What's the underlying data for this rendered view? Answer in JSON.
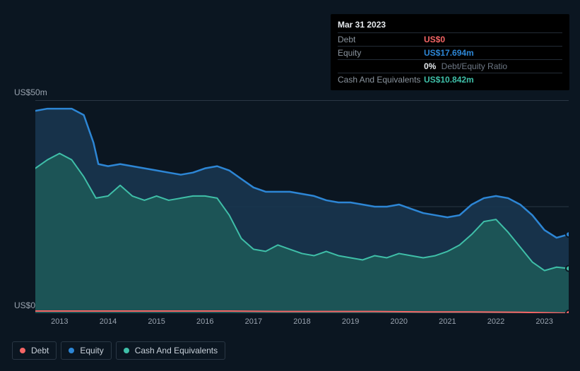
{
  "tooltip": {
    "date": "Mar 31 2023",
    "rows": [
      {
        "label": "Debt",
        "value": "US$0",
        "cls": "c-debt"
      },
      {
        "label": "Equity",
        "value": "US$17.694m",
        "cls": "c-equity"
      },
      {
        "label": "",
        "ratio_pct": "0%",
        "ratio_lbl": "Debt/Equity Ratio"
      },
      {
        "label": "Cash And Equivalents",
        "value": "US$10.842m",
        "cls": "c-cash"
      }
    ]
  },
  "chart": {
    "type": "area",
    "background_color": "#0b1621",
    "grid_color": "#2a3744",
    "y_axis": {
      "min": 0,
      "max": 50,
      "top_label": "US$50m",
      "bottom_label": "US$0"
    },
    "x_axis": {
      "min": 2012.5,
      "max": 2023.5,
      "ticks": [
        2013,
        2014,
        2015,
        2016,
        2017,
        2018,
        2019,
        2020,
        2021,
        2022,
        2023
      ],
      "tick_labels": [
        "2013",
        "2014",
        "2015",
        "2016",
        "2017",
        "2018",
        "2019",
        "2020",
        "2021",
        "2022",
        "2023"
      ]
    },
    "series": [
      {
        "name": "Equity",
        "color": "#2d86d5",
        "fill": "#18354f",
        "fill_opacity": 0.9,
        "line_width": 2.5,
        "end_marker": true,
        "points": [
          [
            2012.5,
            47.5
          ],
          [
            2012.75,
            48
          ],
          [
            2013.0,
            48
          ],
          [
            2013.25,
            48
          ],
          [
            2013.5,
            46.5
          ],
          [
            2013.7,
            40
          ],
          [
            2013.8,
            35
          ],
          [
            2014.0,
            34.5
          ],
          [
            2014.25,
            35
          ],
          [
            2014.5,
            34.5
          ],
          [
            2014.75,
            34
          ],
          [
            2015.0,
            33.5
          ],
          [
            2015.25,
            33
          ],
          [
            2015.5,
            32.5
          ],
          [
            2015.75,
            33
          ],
          [
            2016.0,
            34
          ],
          [
            2016.25,
            34.5
          ],
          [
            2016.5,
            33.5
          ],
          [
            2016.75,
            31.5
          ],
          [
            2017.0,
            29.5
          ],
          [
            2017.25,
            28.5
          ],
          [
            2017.5,
            28.5
          ],
          [
            2017.75,
            28.5
          ],
          [
            2018.0,
            28
          ],
          [
            2018.25,
            27.5
          ],
          [
            2018.5,
            26.5
          ],
          [
            2018.75,
            26
          ],
          [
            2019.0,
            26
          ],
          [
            2019.25,
            25.5
          ],
          [
            2019.5,
            25
          ],
          [
            2019.75,
            25
          ],
          [
            2020.0,
            25.5
          ],
          [
            2020.25,
            24.5
          ],
          [
            2020.5,
            23.5
          ],
          [
            2020.75,
            23
          ],
          [
            2021.0,
            22.5
          ],
          [
            2021.25,
            23
          ],
          [
            2021.5,
            25.5
          ],
          [
            2021.75,
            27
          ],
          [
            2022.0,
            27.5
          ],
          [
            2022.25,
            27
          ],
          [
            2022.5,
            25.5
          ],
          [
            2022.75,
            23
          ],
          [
            2023.0,
            19.5
          ],
          [
            2023.25,
            17.7
          ],
          [
            2023.5,
            18.5
          ]
        ]
      },
      {
        "name": "Cash And Equivalents",
        "color": "#3fbfa8",
        "fill": "#1d5a58",
        "fill_opacity": 0.85,
        "line_width": 2,
        "end_marker": true,
        "points": [
          [
            2012.5,
            34
          ],
          [
            2012.75,
            36
          ],
          [
            2013.0,
            37.5
          ],
          [
            2013.25,
            36
          ],
          [
            2013.5,
            32
          ],
          [
            2013.75,
            27
          ],
          [
            2014.0,
            27.5
          ],
          [
            2014.25,
            30
          ],
          [
            2014.5,
            27.5
          ],
          [
            2014.75,
            26.5
          ],
          [
            2015.0,
            27.5
          ],
          [
            2015.25,
            26.5
          ],
          [
            2015.5,
            27
          ],
          [
            2015.75,
            27.5
          ],
          [
            2016.0,
            27.5
          ],
          [
            2016.25,
            27
          ],
          [
            2016.5,
            23
          ],
          [
            2016.75,
            17.5
          ],
          [
            2017.0,
            15
          ],
          [
            2017.25,
            14.5
          ],
          [
            2017.5,
            16
          ],
          [
            2017.75,
            15
          ],
          [
            2018.0,
            14
          ],
          [
            2018.25,
            13.5
          ],
          [
            2018.5,
            14.5
          ],
          [
            2018.75,
            13.5
          ],
          [
            2019.0,
            13
          ],
          [
            2019.25,
            12.5
          ],
          [
            2019.5,
            13.5
          ],
          [
            2019.75,
            13
          ],
          [
            2020.0,
            14
          ],
          [
            2020.25,
            13.5
          ],
          [
            2020.5,
            13
          ],
          [
            2020.75,
            13.5
          ],
          [
            2021.0,
            14.5
          ],
          [
            2021.25,
            16
          ],
          [
            2021.5,
            18.5
          ],
          [
            2021.75,
            21.5
          ],
          [
            2022.0,
            22
          ],
          [
            2022.25,
            19
          ],
          [
            2022.5,
            15.5
          ],
          [
            2022.75,
            12
          ],
          [
            2023.0,
            10
          ],
          [
            2023.25,
            10.8
          ],
          [
            2023.5,
            10.5
          ]
        ]
      },
      {
        "name": "Debt",
        "color": "#f56565",
        "fill": "none",
        "line_width": 2,
        "end_marker": true,
        "points": [
          [
            2012.5,
            0.5
          ],
          [
            2013.5,
            0.5
          ],
          [
            2014.5,
            0.5
          ],
          [
            2015.5,
            0.5
          ],
          [
            2016.5,
            0.5
          ],
          [
            2017.5,
            0.4
          ],
          [
            2018.5,
            0.4
          ],
          [
            2019.5,
            0.4
          ],
          [
            2020.5,
            0.3
          ],
          [
            2021.5,
            0.3
          ],
          [
            2022.5,
            0.2
          ],
          [
            2023.0,
            0.1
          ],
          [
            2023.5,
            0
          ]
        ]
      }
    ]
  },
  "legend": {
    "items": [
      {
        "label": "Debt",
        "color": "#f56565"
      },
      {
        "label": "Equity",
        "color": "#2d86d5"
      },
      {
        "label": "Cash And Equivalents",
        "color": "#3fbfa8"
      }
    ]
  }
}
